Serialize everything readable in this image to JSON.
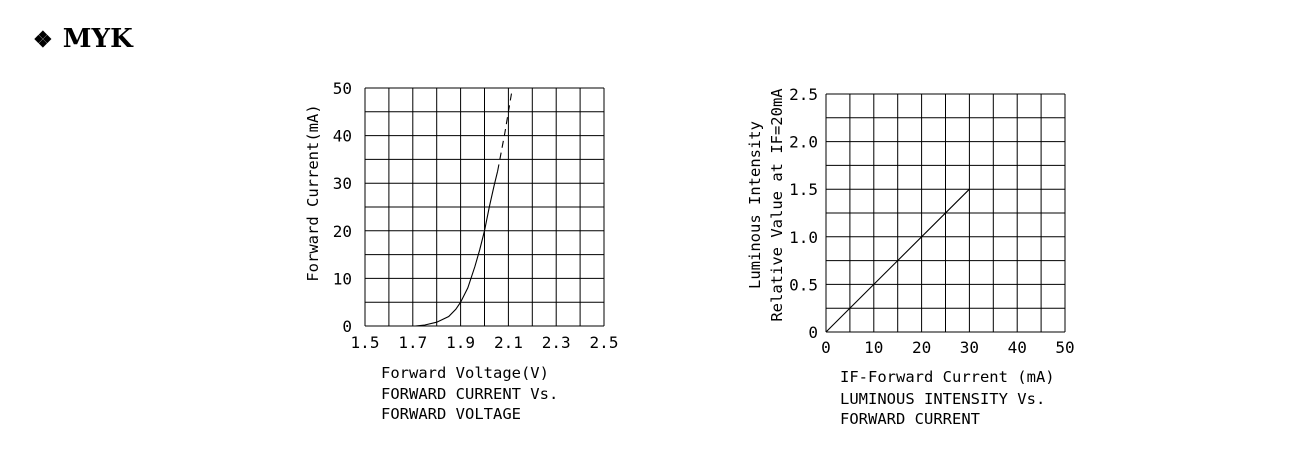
{
  "page_title": "MYK",
  "page_title_bullet": "❖",
  "chart_data": [
    {
      "type": "line",
      "xlabel": "Forward Voltage(V)",
      "ylabel": "Forward Current(mA)",
      "caption_lines": [
        "FORWARD CURRENT Vs.",
        "FORWARD VOLTAGE"
      ],
      "xlim": [
        1.5,
        2.5
      ],
      "ylim": [
        0,
        50
      ],
      "x_tick_labels": [
        "1.5",
        "1.7",
        "1.9",
        "2.1",
        "2.3",
        "2.5"
      ],
      "x_tick_values": [
        1.5,
        1.7,
        1.9,
        2.1,
        2.3,
        2.5
      ],
      "y_tick_labels": [
        "0",
        "10",
        "20",
        "30",
        "40",
        "50"
      ],
      "y_tick_values": [
        0,
        10,
        20,
        30,
        40,
        50
      ],
      "grid": true,
      "series": [
        {
          "style": "solid",
          "x": [
            1.71,
            1.75,
            1.8,
            1.85,
            1.88,
            1.9,
            1.93,
            1.96,
            1.98,
            2.0,
            2.02,
            2.04,
            2.055
          ],
          "y": [
            0,
            0.2,
            0.8,
            2.0,
            3.5,
            5.0,
            8.0,
            12.5,
            16.0,
            20.0,
            25.0,
            29.5,
            32.5
          ]
        },
        {
          "style": "dashed",
          "x": [
            2.055,
            2.085,
            2.115
          ],
          "y": [
            32.5,
            40.5,
            49.5
          ]
        }
      ]
    },
    {
      "type": "line",
      "xlabel": "IF-Forward Current (mA)",
      "ylabel_lines": [
        "Luminous Intensity",
        "Relative Value at IF=20mA"
      ],
      "caption_lines": [
        "LUMINOUS INTENSITY Vs.",
        "FORWARD CURRENT"
      ],
      "xlim": [
        0,
        50
      ],
      "ylim": [
        0,
        2.5
      ],
      "x_tick_labels": [
        "0",
        "10",
        "20",
        "30",
        "40",
        "50"
      ],
      "x_tick_values": [
        0,
        10,
        20,
        30,
        40,
        50
      ],
      "y_tick_labels": [
        "0",
        "0.5",
        "1.0",
        "1.5",
        "2.0",
        "2.5"
      ],
      "y_tick_values": [
        0,
        0.5,
        1.0,
        1.5,
        2.0,
        2.5
      ],
      "grid": true,
      "series": [
        {
          "style": "solid",
          "x": [
            0,
            30
          ],
          "y": [
            0,
            1.5
          ]
        }
      ]
    }
  ]
}
